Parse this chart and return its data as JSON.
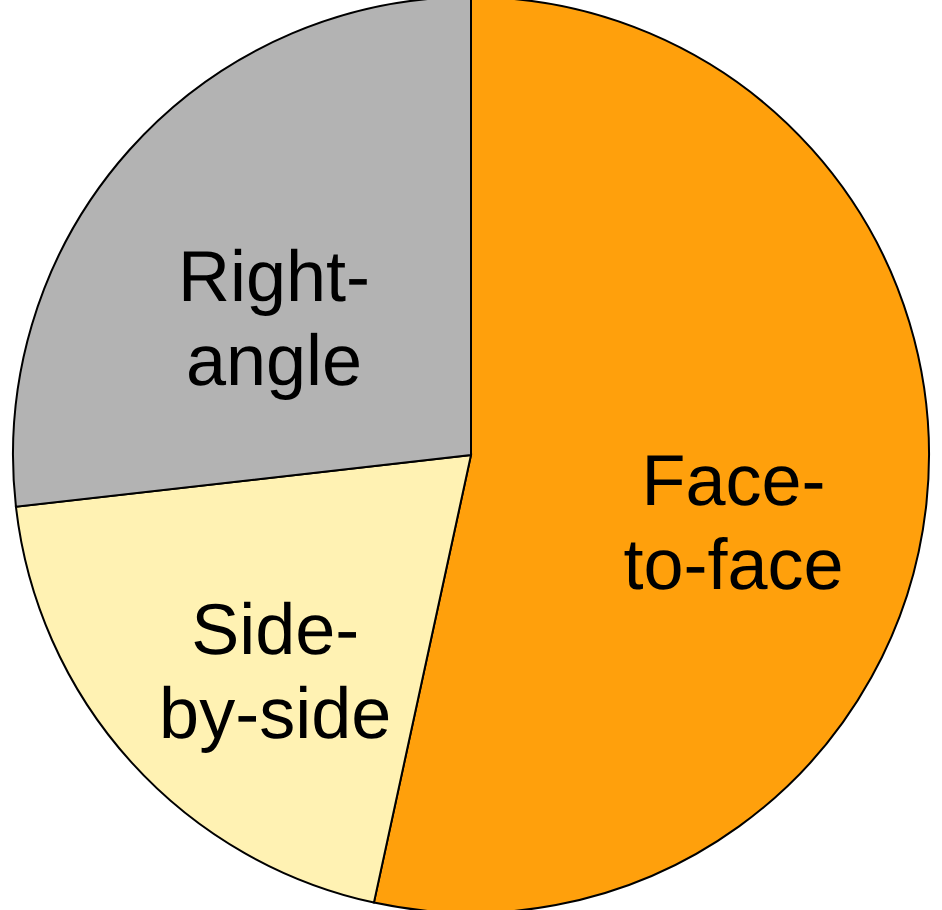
{
  "chart_data": {
    "type": "pie",
    "categories": [
      "Face-to-face",
      "Side-by-side",
      "Right-angle"
    ],
    "values": [
      53.4,
      19.8,
      26.8
    ],
    "colors": [
      "#ffa00c",
      "#fff2b3",
      "#b3b3b3"
    ]
  }
}
